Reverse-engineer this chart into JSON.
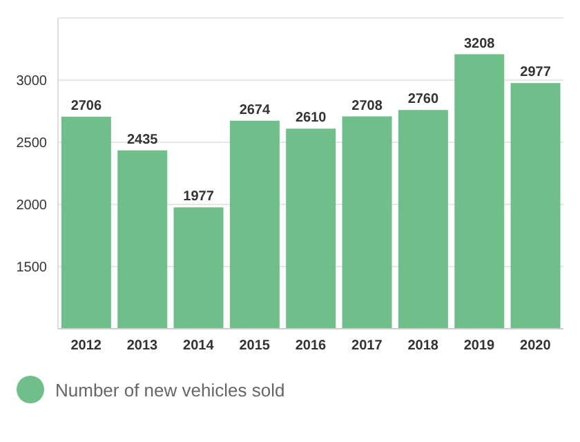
{
  "chart_data": {
    "type": "bar",
    "categories": [
      "2012",
      "2013",
      "2014",
      "2015",
      "2016",
      "2017",
      "2018",
      "2019",
      "2020"
    ],
    "series": [
      {
        "name": "Number of new vehicles sold",
        "color": "#70bf8b",
        "values": [
          2706,
          2435,
          1977,
          2674,
          2610,
          2708,
          2760,
          3208,
          2977
        ]
      }
    ],
    "ylim": [
      1000,
      3500
    ],
    "yticks": [
      1500,
      2000,
      2500,
      3000
    ],
    "grid": "y",
    "data_labels": true,
    "legend": "bottom"
  }
}
